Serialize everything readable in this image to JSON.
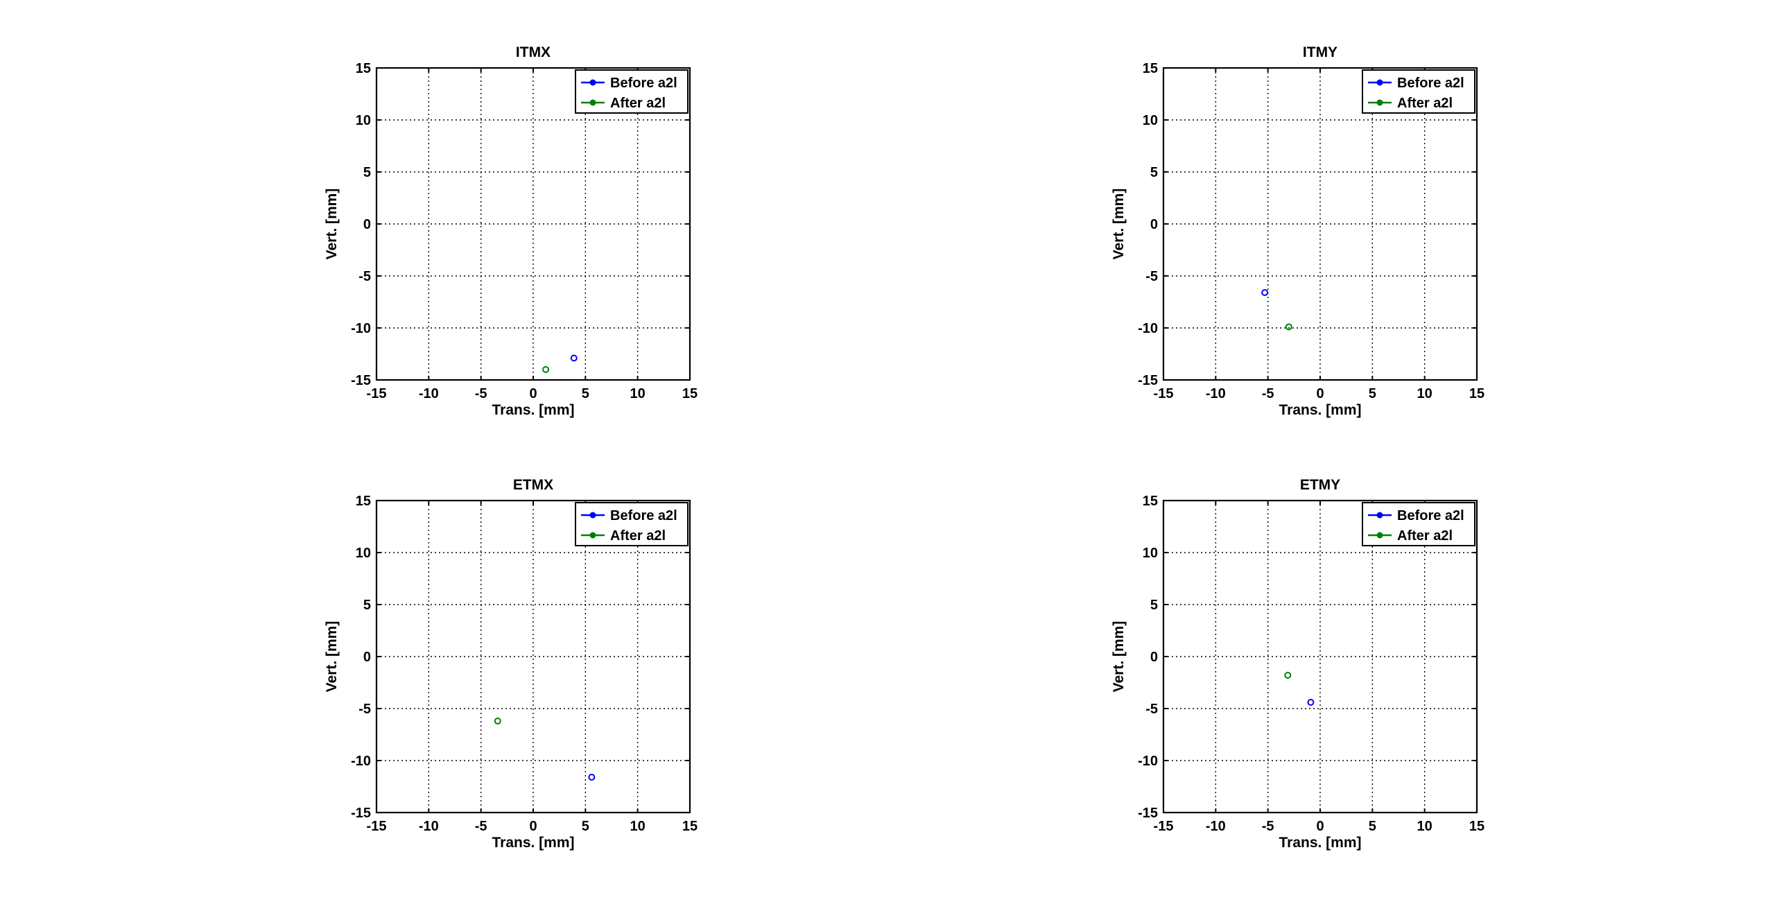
{
  "figure": {
    "legend_labels": [
      "Before a2l",
      "After a2l"
    ]
  },
  "colors": {
    "before": "#0000ff",
    "after": "#008000",
    "axes": "#000000",
    "grid": "#000000",
    "background": "#ffffff"
  },
  "chart_data": [
    {
      "type": "scatter",
      "title": "ITMX",
      "xlabel": "Trans. [mm]",
      "ylabel": "Vert. [mm]",
      "xlim": [
        -15,
        15
      ],
      "ylim": [
        -15,
        15
      ],
      "xticks": [
        -15,
        -10,
        -5,
        0,
        5,
        10,
        15
      ],
      "yticks": [
        -15,
        -10,
        -5,
        0,
        5,
        10,
        15
      ],
      "grid": true,
      "legend_position": "top-right",
      "series": [
        {
          "name": "Before a2l",
          "color": "#0000ff",
          "x": [
            3.9
          ],
          "y": [
            -12.9
          ]
        },
        {
          "name": "After a2l",
          "color": "#008000",
          "x": [
            1.2
          ],
          "y": [
            -14.0
          ]
        }
      ]
    },
    {
      "type": "scatter",
      "title": "ITMY",
      "xlabel": "Trans. [mm]",
      "ylabel": "Vert. [mm]",
      "xlim": [
        -15,
        15
      ],
      "ylim": [
        -15,
        15
      ],
      "xticks": [
        -15,
        -10,
        -5,
        0,
        5,
        10,
        15
      ],
      "yticks": [
        -15,
        -10,
        -5,
        0,
        5,
        10,
        15
      ],
      "grid": true,
      "legend_position": "top-right",
      "series": [
        {
          "name": "Before a2l",
          "color": "#0000ff",
          "x": [
            -5.3
          ],
          "y": [
            -6.6
          ]
        },
        {
          "name": "After a2l",
          "color": "#008000",
          "x": [
            -3.0
          ],
          "y": [
            -9.9
          ]
        }
      ]
    },
    {
      "type": "scatter",
      "title": "ETMX",
      "xlabel": "Trans. [mm]",
      "ylabel": "Vert. [mm]",
      "xlim": [
        -15,
        15
      ],
      "ylim": [
        -15,
        15
      ],
      "xticks": [
        -15,
        -10,
        -5,
        0,
        5,
        10,
        15
      ],
      "yticks": [
        -15,
        -10,
        -5,
        0,
        5,
        10,
        15
      ],
      "grid": true,
      "legend_position": "top-right",
      "series": [
        {
          "name": "Before a2l",
          "color": "#0000ff",
          "x": [
            5.6
          ],
          "y": [
            -11.6
          ]
        },
        {
          "name": "After a2l",
          "color": "#008000",
          "x": [
            -3.4
          ],
          "y": [
            -6.2
          ]
        }
      ]
    },
    {
      "type": "scatter",
      "title": "ETMY",
      "xlabel": "Trans. [mm]",
      "ylabel": "Vert. [mm]",
      "xlim": [
        -15,
        15
      ],
      "ylim": [
        -15,
        15
      ],
      "xticks": [
        -15,
        -10,
        -5,
        0,
        5,
        10,
        15
      ],
      "yticks": [
        -15,
        -10,
        -5,
        0,
        5,
        10,
        15
      ],
      "grid": true,
      "legend_position": "top-right",
      "series": [
        {
          "name": "Before a2l",
          "color": "#0000ff",
          "x": [
            -0.9
          ],
          "y": [
            -4.4
          ]
        },
        {
          "name": "After a2l",
          "color": "#008000",
          "x": [
            -3.1
          ],
          "y": [
            -1.8
          ]
        }
      ]
    }
  ]
}
